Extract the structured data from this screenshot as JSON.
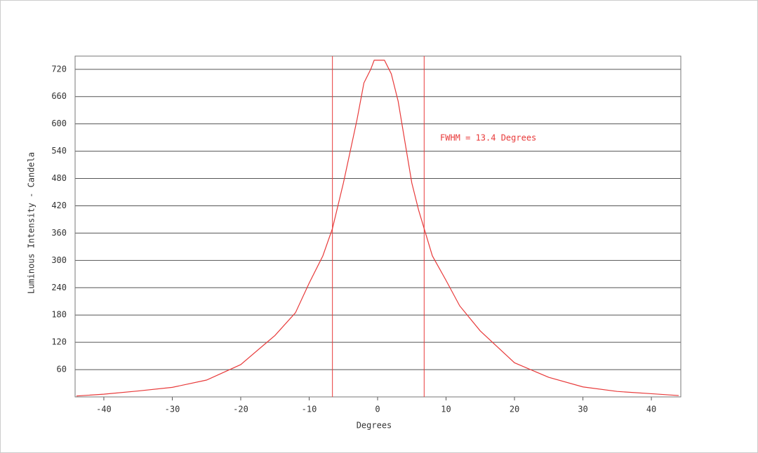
{
  "chart_data": {
    "type": "line",
    "x_label": "Degrees",
    "y_label": "Luminous Intensity - Candela",
    "annotation": "FWHM = 13.4 Degrees",
    "series": [
      {
        "name": "Intensity",
        "color": "#e83a3a",
        "x": [
          -44,
          -40,
          -35,
          -30,
          -25,
          -20,
          -15,
          -12,
          -10,
          -8,
          -6.6,
          -5,
          -4,
          -3,
          -2,
          -1,
          -0.5,
          1,
          2,
          3,
          4,
          5,
          6,
          6.8,
          8,
          10,
          12,
          15,
          20,
          25,
          30,
          35,
          40,
          44
        ],
        "values": [
          2,
          6,
          13,
          21,
          37,
          71,
          135,
          185,
          250,
          310,
          370,
          470,
          540,
          610,
          690,
          720,
          740,
          740,
          710,
          650,
          560,
          470,
          410,
          370,
          310,
          256,
          200,
          145,
          75,
          43,
          22,
          12,
          7,
          3
        ]
      }
    ],
    "vlines": [
      -6.6,
      6.8
    ],
    "vline_color": "#e83a3a",
    "xlim": [
      -44.2,
      44.3
    ],
    "ylim": [
      0,
      749
    ],
    "xticks": [
      -40,
      -30,
      -20,
      -10,
      0,
      10,
      20,
      30,
      40
    ],
    "yticks": [
      60,
      120,
      180,
      240,
      300,
      360,
      420,
      480,
      540,
      600,
      660,
      720
    ],
    "grid": true
  }
}
